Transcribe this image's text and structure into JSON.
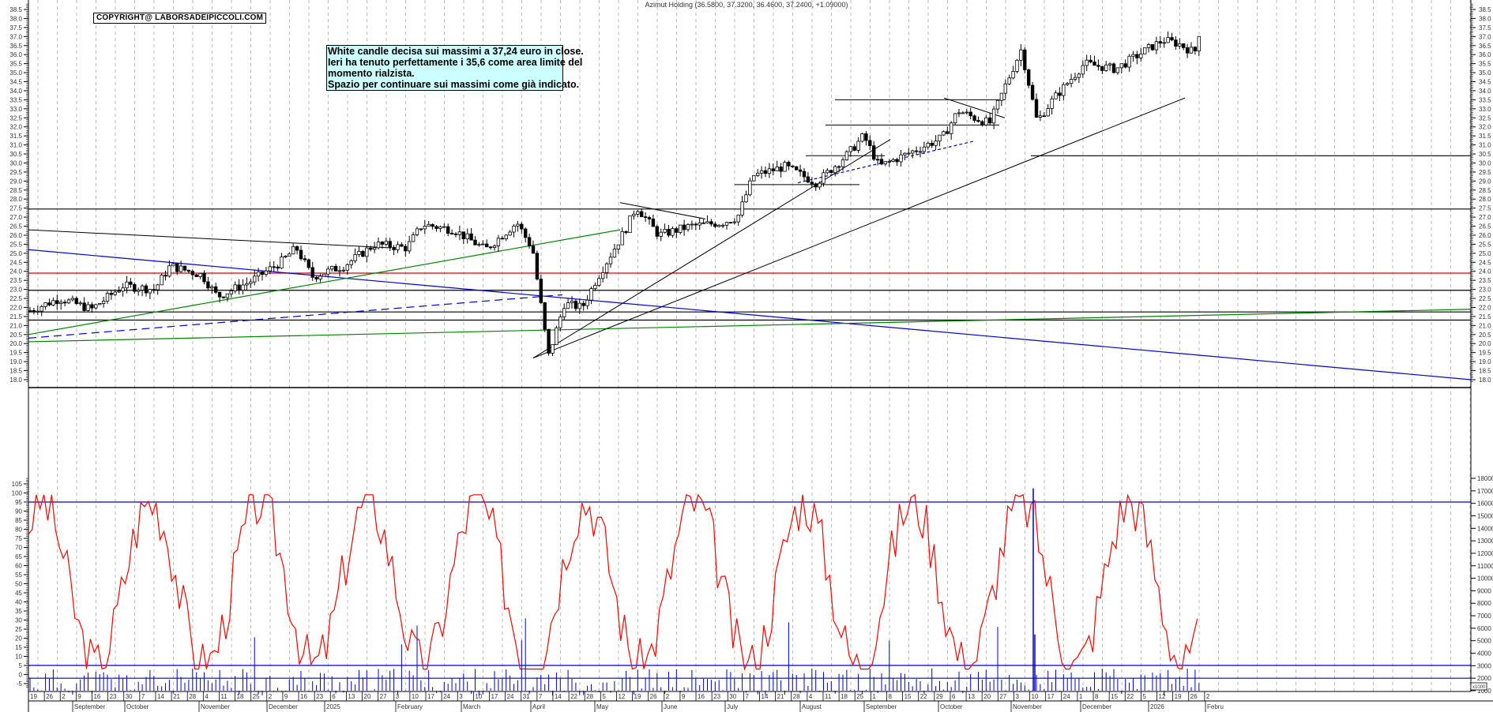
{
  "header": {
    "title": "Azimut Holding (36.5800, 37.3200, 36.4600, 37.2400, +1.09000)",
    "copyright": "COPYRIGHT@ LABORSADEIPICCOLI.COM"
  },
  "annotation": {
    "lines": [
      "White candle decisa sui massimi a 37,24 euro in close.",
      "Ieri ha tenuto perfettamente i 35,6  come area limite del",
      "momento rialzista.",
      "Spazio per continuare sui massimi come già indicato."
    ],
    "background": "#ccffff"
  },
  "colors": {
    "price_lines": "#000000",
    "support_red": "#e00000",
    "trend_blue": "#0000cc",
    "trend_green": "#008000",
    "oscillator": "#ff0000",
    "volume": "#0000cc",
    "grid": "#bbbbbb"
  },
  "chart_data": [
    {
      "type": "candlestick",
      "title": "Azimut Holding (36.5800, 37.3200, 36.4600, 37.2400, +1.09000)",
      "ohlc_last": {
        "open": 36.58,
        "high": 37.32,
        "low": 36.46,
        "close": 37.24,
        "change": 1.09
      },
      "ylim": [
        17.5,
        39.0
      ],
      "yticks": [
        "18.0",
        "18.5",
        "19.0",
        "19.5",
        "20.0",
        "20.5",
        "21.0",
        "21.5",
        "22.0",
        "22.5",
        "23.0",
        "23.5",
        "24.0",
        "24.5",
        "25.0",
        "25.5",
        "26.0",
        "26.5",
        "27.0",
        "27.5",
        "28.0",
        "28.5",
        "29.0",
        "29.5",
        "30.0",
        "30.5",
        "31.0",
        "31.5",
        "32.0",
        "32.5",
        "33.0",
        "33.5",
        "34.0",
        "34.5",
        "35.0",
        "35.5",
        "36.0",
        "36.5",
        "37.0",
        "37.5",
        "38.0",
        "38.5"
      ],
      "horizontal_levels": [
        {
          "value": 27.45,
          "color": "#000000"
        },
        {
          "value": 23.9,
          "color": "#e00000"
        },
        {
          "value": 22.95,
          "color": "#000000"
        },
        {
          "value": 21.75,
          "color": "#000000"
        },
        {
          "value": 21.3,
          "color": "#000000"
        },
        {
          "value": 30.4,
          "color": "#000000",
          "from": "November"
        }
      ],
      "price_path": [
        [
          "2024-08-19",
          21.8
        ],
        [
          "2024-09-02",
          22.5
        ],
        [
          "2024-09-16",
          21.9
        ],
        [
          "2024-09-30",
          23.2
        ],
        [
          "2024-10-14",
          23.0
        ],
        [
          "2024-10-21",
          24.3
        ],
        [
          "2024-11-04",
          23.8
        ],
        [
          "2024-11-11",
          22.6
        ],
        [
          "2024-11-25",
          23.4
        ],
        [
          "2024-12-09",
          24.5
        ],
        [
          "2024-12-16",
          25.3
        ],
        [
          "2024-12-23",
          23.7
        ],
        [
          "2025-01-06",
          24.3
        ],
        [
          "2025-01-20",
          25.5
        ],
        [
          "2025-02-03",
          25.3
        ],
        [
          "2025-02-10",
          26.6
        ],
        [
          "2025-02-24",
          26.3
        ],
        [
          "2025-03-10",
          25.2
        ],
        [
          "2025-03-24",
          26.7
        ],
        [
          "2025-03-31",
          25.2
        ],
        [
          "2025-04-07",
          19.3
        ],
        [
          "2025-04-14",
          22.2
        ],
        [
          "2025-04-22",
          22.0
        ],
        [
          "2025-04-28",
          23.5
        ],
        [
          "2025-05-05",
          25.0
        ],
        [
          "2025-05-12",
          26.5
        ],
        [
          "2025-05-16",
          27.6
        ],
        [
          "2025-05-26",
          26.0
        ],
        [
          "2025-06-09",
          26.5
        ],
        [
          "2025-06-23",
          26.7
        ],
        [
          "2025-06-30",
          27.0
        ],
        [
          "2025-07-07",
          29.3
        ],
        [
          "2025-07-21",
          29.8
        ],
        [
          "2025-08-04",
          28.9
        ],
        [
          "2025-08-18",
          30.5
        ],
        [
          "2025-08-25",
          31.5
        ],
        [
          "2025-09-01",
          29.8
        ],
        [
          "2025-09-15",
          30.6
        ],
        [
          "2025-09-29",
          31.4
        ],
        [
          "2025-10-06",
          32.9
        ],
        [
          "2025-10-13",
          32.5
        ],
        [
          "2025-10-20",
          32.2
        ],
        [
          "2025-10-27",
          34.3
        ],
        [
          "2025-11-03",
          36.3
        ],
        [
          "2025-11-10",
          32.3
        ],
        [
          "2025-11-17",
          33.5
        ],
        [
          "2025-12-01",
          35.5
        ],
        [
          "2025-12-15",
          35.2
        ],
        [
          "2025-12-29",
          36.3
        ],
        [
          "2026-01-05",
          36.8
        ],
        [
          "2026-01-12",
          36.6
        ],
        [
          "2026-01-19",
          36.1
        ],
        [
          "2026-01-21",
          37.24
        ]
      ]
    },
    {
      "type": "line",
      "title": "Oscillator",
      "ylim": [
        -7,
        110
      ],
      "yticks": [
        "-5",
        "0",
        "5",
        "10",
        "15",
        "20",
        "25",
        "30",
        "35",
        "40",
        "45",
        "50",
        "55",
        "60",
        "65",
        "70",
        "75",
        "80",
        "85",
        "90",
        "95",
        "100",
        "105"
      ],
      "reference_lines": [
        95,
        5
      ],
      "color": "#ff0000"
    },
    {
      "type": "bar",
      "title": "Volume (x1000)",
      "yticks": [
        "1000",
        "2000",
        "3000",
        "4000",
        "5000",
        "6000",
        "7000",
        "8000",
        "9000",
        "10000",
        "11000",
        "12000",
        "13000",
        "14000",
        "15000",
        "16000",
        "17000",
        "18000"
      ],
      "unit_label": "x1000",
      "reference_line": 2000,
      "color": "#0000cc"
    }
  ],
  "xaxis": {
    "day_ticks": [
      "19",
      "26",
      "2",
      "9",
      "16",
      "23",
      "30",
      "7",
      "14",
      "21",
      "28",
      "4",
      "11",
      "18",
      "25",
      "2",
      "9",
      "16",
      "23",
      "6",
      "13",
      "20",
      "27",
      "3",
      "10",
      "17",
      "24",
      "3",
      "10",
      "17",
      "24",
      "31",
      "7",
      "14",
      "22",
      "28",
      "5",
      "12",
      "19",
      "26",
      "2",
      "9",
      "16",
      "23",
      "30",
      "7",
      "14",
      "21",
      "28",
      "4",
      "11",
      "18",
      "25",
      "1",
      "8",
      "15",
      "22",
      "29",
      "6",
      "13",
      "20",
      "27",
      "3",
      "10",
      "17",
      "24",
      "1",
      "8",
      "15",
      "22",
      "5",
      "12",
      "19",
      "26",
      "2"
    ],
    "months": [
      {
        "label": "September",
        "x": 92
      },
      {
        "label": "October",
        "x": 158
      },
      {
        "label": "November",
        "x": 252
      },
      {
        "label": "December",
        "x": 338
      },
      {
        "label": "2025",
        "x": 411
      },
      {
        "label": "February",
        "x": 501
      },
      {
        "label": "March",
        "x": 584
      },
      {
        "label": "April",
        "x": 672
      },
      {
        "label": "May",
        "x": 753
      },
      {
        "label": "June",
        "x": 838
      },
      {
        "label": "July",
        "x": 918
      },
      {
        "label": "August",
        "x": 1013
      },
      {
        "label": "September",
        "x": 1094
      },
      {
        "label": "October",
        "x": 1188
      },
      {
        "label": "November",
        "x": 1280
      },
      {
        "label": "December",
        "x": 1368
      },
      {
        "label": "2026",
        "x": 1454
      },
      {
        "label": "Febru",
        "x": 1526
      }
    ]
  }
}
